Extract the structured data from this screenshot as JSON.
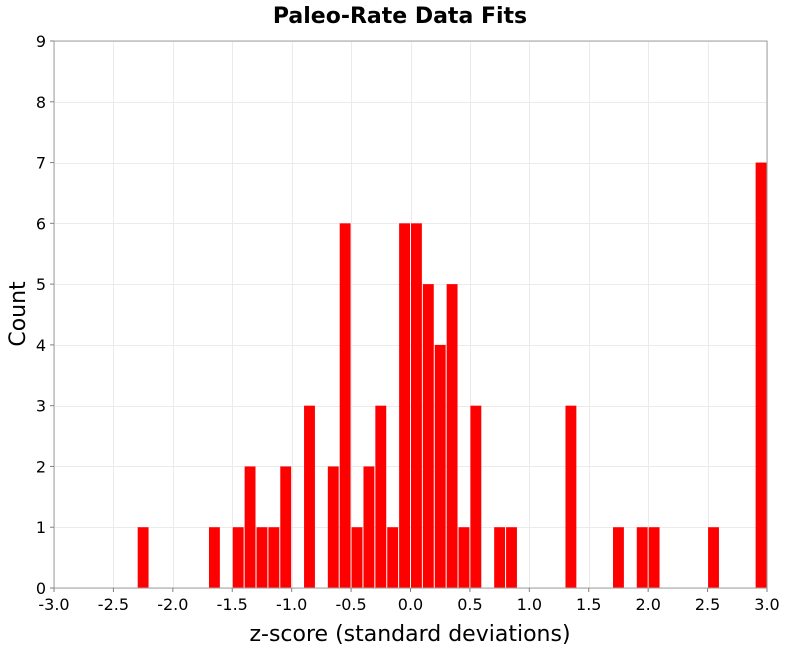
{
  "chart_data": {
    "type": "bar",
    "title": "Paleo-Rate Data Fits",
    "xlabel": "z-score (standard deviations)",
    "ylabel": "Count",
    "xlim": [
      -3.0,
      3.0
    ],
    "ylim": [
      0,
      9
    ],
    "bin_width": 0.1,
    "x_ticks": [
      "-3.0",
      "-2.5",
      "-2.0",
      "-1.5",
      "-1.0",
      "-0.5",
      "0.0",
      "0.5",
      "1.0",
      "1.5",
      "2.0",
      "2.5",
      "3.0"
    ],
    "y_ticks": [
      "0",
      "1",
      "2",
      "3",
      "4",
      "5",
      "6",
      "7",
      "8",
      "9"
    ],
    "grid": true,
    "bar_color": "#ff0000",
    "bin_centers": [
      -2.25,
      -1.65,
      -1.45,
      -1.35,
      -1.25,
      -1.15,
      -1.05,
      -0.85,
      -0.65,
      -0.55,
      -0.45,
      -0.35,
      -0.25,
      -0.15,
      -0.05,
      0.05,
      0.15,
      0.25,
      0.35,
      0.45,
      0.55,
      0.75,
      0.85,
      1.35,
      1.75,
      1.95,
      2.05,
      2.55,
      2.95
    ],
    "values": [
      1,
      1,
      1,
      2,
      1,
      1,
      2,
      3,
      2,
      6,
      1,
      2,
      3,
      1,
      6,
      6,
      5,
      4,
      5,
      1,
      3,
      1,
      1,
      3,
      1,
      1,
      1,
      1,
      7
    ]
  }
}
